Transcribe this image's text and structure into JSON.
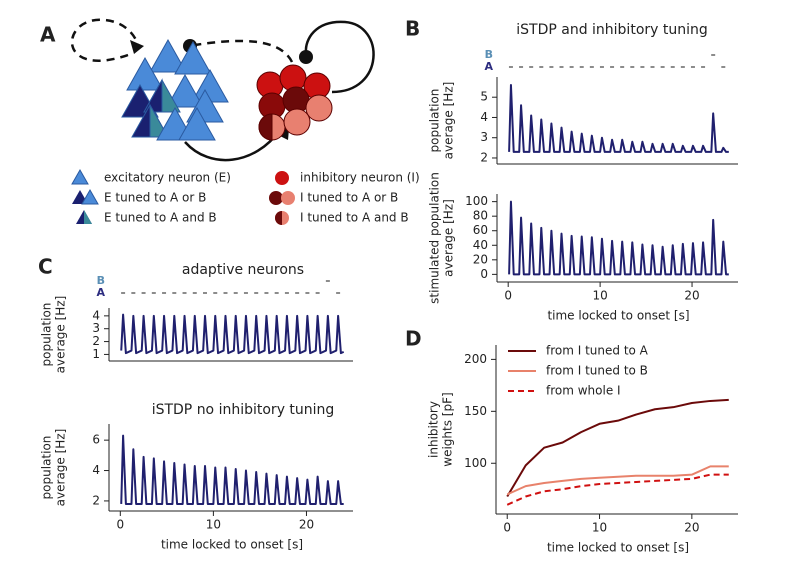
{
  "diagram": {
    "label": "A",
    "legend": [
      "excitatory neuron (E)",
      "E tuned to A or B",
      "E tuned to A and B",
      "inhibitory neuron (I)",
      "I tuned to A or B",
      "I tuned to A and B"
    ]
  },
  "chart_data": [
    {
      "panel": "B",
      "type": "line",
      "title": "iSTDP and inhibitory tuning",
      "ylabel": [
        "population",
        "average [Hz]"
      ],
      "x": [
        0.1,
        0.3,
        0.6,
        1.2,
        1.4,
        1.7,
        2.3,
        2.5,
        2.8,
        3.4,
        3.6,
        3.9,
        4.5,
        4.7,
        5.0,
        5.6,
        5.8,
        6.1,
        6.7,
        6.9,
        7.2,
        7.8,
        8.0,
        8.3,
        8.9,
        9.1,
        9.4,
        10.0,
        10.2,
        10.5,
        11.1,
        11.3,
        11.6,
        12.2,
        12.4,
        12.7,
        13.3,
        13.5,
        13.8,
        14.4,
        14.6,
        14.9,
        15.5,
        15.7,
        16.0,
        16.6,
        16.8,
        17.1,
        17.7,
        17.9,
        18.2,
        18.8,
        19.0,
        19.3,
        19.9,
        20.1,
        20.4,
        21.0,
        21.2,
        21.5,
        22.1,
        22.3,
        22.6,
        23.2,
        23.4,
        23.7,
        24.0
      ],
      "values": [
        2.3,
        5.6,
        2.3,
        2.3,
        4.6,
        2.3,
        2.3,
        4.1,
        2.3,
        2.3,
        3.9,
        2.3,
        2.3,
        3.7,
        2.3,
        2.3,
        3.5,
        2.3,
        2.3,
        3.3,
        2.3,
        2.3,
        3.2,
        2.3,
        2.3,
        3.1,
        2.3,
        2.3,
        3.0,
        2.3,
        2.3,
        2.9,
        2.3,
        2.3,
        2.9,
        2.3,
        2.3,
        2.8,
        2.3,
        2.3,
        2.8,
        2.3,
        2.3,
        2.7,
        2.3,
        2.3,
        2.7,
        2.3,
        2.3,
        2.7,
        2.3,
        2.3,
        2.6,
        2.3,
        2.3,
        2.6,
        2.3,
        2.3,
        2.6,
        2.3,
        2.3,
        4.2,
        2.3,
        2.3,
        2.5,
        2.3,
        2.3
      ],
      "color": "#20206e",
      "xlim": [
        -1,
        25
      ],
      "ylim": [
        1.9,
        5.8
      ],
      "yticks": [
        2,
        3,
        4,
        5
      ],
      "stimuli": [
        {
          "name": "B",
          "color": "#5a8fb5",
          "times": [
            22.3
          ]
        },
        {
          "name": "A",
          "color": "#2d2d80",
          "times": [
            0.3,
            1.4,
            2.5,
            3.6,
            4.7,
            5.8,
            6.9,
            8.0,
            9.1,
            10.2,
            11.3,
            12.4,
            13.5,
            14.6,
            15.7,
            16.8,
            17.9,
            19.0,
            20.1,
            21.2,
            23.4
          ]
        }
      ]
    },
    {
      "type": "line",
      "ylabel": [
        "stimulated population",
        "average [Hz]"
      ],
      "xlabel": "time locked to onset [s]",
      "x": [
        0.1,
        0.3,
        0.6,
        1.2,
        1.4,
        1.7,
        2.3,
        2.5,
        2.8,
        3.4,
        3.6,
        3.9,
        4.5,
        4.7,
        5.0,
        5.6,
        5.8,
        6.1,
        6.7,
        6.9,
        7.2,
        7.8,
        8.0,
        8.3,
        8.9,
        9.1,
        9.4,
        10.0,
        10.2,
        10.5,
        11.1,
        11.3,
        11.6,
        12.2,
        12.4,
        12.7,
        13.3,
        13.5,
        13.8,
        14.4,
        14.6,
        14.9,
        15.5,
        15.7,
        16.0,
        16.6,
        16.8,
        17.1,
        17.7,
        17.9,
        18.2,
        18.8,
        19.0,
        19.3,
        19.9,
        20.1,
        20.4,
        21.0,
        21.2,
        21.5,
        22.1,
        22.3,
        22.6,
        23.2,
        23.4,
        23.7,
        24.0
      ],
      "values": [
        0,
        100,
        0,
        0,
        78,
        0,
        0,
        70,
        0,
        0,
        64,
        0,
        0,
        60,
        0,
        0,
        56,
        0,
        0,
        53,
        0,
        0,
        52,
        0,
        0,
        51,
        0,
        0,
        49,
        0,
        0,
        46,
        0,
        0,
        45,
        0,
        0,
        44,
        0,
        0,
        41,
        0,
        0,
        40,
        0,
        0,
        38,
        0,
        0,
        40,
        0,
        0,
        42,
        0,
        0,
        43,
        0,
        0,
        44,
        0,
        0,
        75,
        0,
        0,
        45,
        0,
        0
      ],
      "color": "#20206e",
      "xlim": [
        -1,
        25
      ],
      "ylim": [
        -5,
        105
      ],
      "yticks": [
        0,
        20,
        40,
        60,
        80,
        100
      ],
      "xticks": [
        0,
        10,
        20
      ]
    },
    {
      "panel": "C",
      "type": "line",
      "title": "adaptive neurons",
      "ylabel": [
        "population",
        "average [Hz]"
      ],
      "x": [
        0.1,
        0.3,
        0.6,
        1.2,
        1.4,
        1.7,
        2.3,
        2.5,
        2.8,
        3.4,
        3.6,
        3.9,
        4.5,
        4.7,
        5.0,
        5.6,
        5.8,
        6.1,
        6.7,
        6.9,
        7.2,
        7.8,
        8.0,
        8.3,
        8.9,
        9.1,
        9.4,
        10.0,
        10.2,
        10.5,
        11.1,
        11.3,
        11.6,
        12.2,
        12.4,
        12.7,
        13.3,
        13.5,
        13.8,
        14.4,
        14.6,
        14.9,
        15.5,
        15.7,
        16.0,
        16.6,
        16.8,
        17.1,
        17.7,
        17.9,
        18.2,
        18.8,
        19.0,
        19.3,
        19.9,
        20.1,
        20.4,
        21.0,
        21.2,
        21.5,
        22.1,
        22.3,
        22.6,
        23.2,
        23.4,
        23.7,
        24.0
      ],
      "values": [
        1.3,
        4.1,
        1.1,
        1.3,
        4.0,
        1.1,
        1.3,
        4.0,
        1.1,
        1.3,
        4.0,
        1.1,
        1.3,
        4.0,
        1.1,
        1.3,
        4.0,
        1.1,
        1.3,
        4.0,
        1.1,
        1.3,
        4.0,
        1.1,
        1.3,
        4.0,
        1.1,
        1.3,
        4.0,
        1.1,
        1.3,
        4.0,
        1.1,
        1.3,
        4.0,
        1.1,
        1.3,
        4.0,
        1.1,
        1.3,
        4.0,
        1.1,
        1.3,
        4.0,
        1.1,
        1.3,
        4.0,
        1.1,
        1.3,
        4.0,
        1.1,
        1.3,
        4.0,
        1.1,
        1.3,
        4.0,
        1.1,
        1.3,
        4.0,
        1.1,
        1.3,
        4.0,
        1.1,
        1.3,
        4.0,
        1.1,
        1.2
      ],
      "color": "#20206e",
      "xlim": [
        -1,
        25
      ],
      "ylim": [
        0.8,
        4.3
      ],
      "yticks": [
        1,
        2,
        3,
        4
      ],
      "stimuli": [
        {
          "name": "B",
          "color": "#5a8fb5",
          "times": [
            22.3
          ]
        },
        {
          "name": "A",
          "color": "#2d2d80",
          "times": [
            0.3,
            1.4,
            2.5,
            3.6,
            4.7,
            5.8,
            6.9,
            8.0,
            9.1,
            10.2,
            11.3,
            12.4,
            13.5,
            14.6,
            15.7,
            16.8,
            17.9,
            19.0,
            20.1,
            21.2,
            23.4
          ]
        }
      ]
    },
    {
      "type": "line",
      "title": "iSTDP no inhibitory tuning",
      "ylabel": [
        "population",
        "average [Hz]"
      ],
      "xlabel": "time locked to onset [s]",
      "x": [
        0.1,
        0.3,
        0.6,
        1.2,
        1.4,
        1.7,
        2.3,
        2.5,
        2.8,
        3.4,
        3.6,
        3.9,
        4.5,
        4.7,
        5.0,
        5.6,
        5.8,
        6.1,
        6.7,
        6.9,
        7.2,
        7.8,
        8.0,
        8.3,
        8.9,
        9.1,
        9.4,
        10.0,
        10.2,
        10.5,
        11.1,
        11.3,
        11.6,
        12.2,
        12.4,
        12.7,
        13.3,
        13.5,
        13.8,
        14.4,
        14.6,
        14.9,
        15.5,
        15.7,
        16.0,
        16.6,
        16.8,
        17.1,
        17.7,
        17.9,
        18.2,
        18.8,
        19.0,
        19.3,
        19.9,
        20.1,
        20.4,
        21.0,
        21.2,
        21.5,
        22.1,
        22.3,
        22.6,
        23.2,
        23.4,
        23.7,
        24.0
      ],
      "values": [
        1.8,
        6.3,
        1.8,
        1.8,
        5.4,
        1.8,
        1.8,
        4.9,
        1.8,
        1.8,
        4.8,
        1.8,
        1.8,
        4.6,
        1.8,
        1.8,
        4.5,
        1.8,
        1.8,
        4.4,
        1.8,
        1.8,
        4.3,
        1.8,
        1.8,
        4.3,
        1.8,
        1.8,
        4.2,
        1.8,
        1.8,
        4.2,
        1.8,
        1.8,
        4.1,
        1.8,
        1.8,
        4.0,
        1.8,
        1.8,
        3.9,
        1.8,
        1.8,
        3.8,
        1.8,
        1.8,
        3.7,
        1.8,
        1.8,
        3.6,
        1.8,
        1.8,
        3.5,
        1.8,
        1.8,
        3.4,
        1.8,
        1.8,
        3.6,
        1.8,
        1.8,
        3.3,
        1.8,
        1.8,
        3.3,
        1.8,
        1.8
      ],
      "color": "#20206e",
      "xlim": [
        -1,
        25
      ],
      "ylim": [
        1.6,
        6.8
      ],
      "yticks": [
        2,
        4,
        6
      ],
      "xticks": [
        0,
        10,
        20
      ]
    },
    {
      "panel": "D",
      "type": "line",
      "ylabel": [
        "inhibitory",
        "weights [pF]"
      ],
      "xlabel": "time locked to onset [s]",
      "x": [
        0,
        2,
        4,
        6,
        8,
        10,
        12,
        14,
        16,
        18,
        20,
        22,
        24
      ],
      "series": [
        {
          "name": "from I tuned to A",
          "color": "#6b0a0a",
          "dash": false,
          "values": [
            68,
            98,
            115,
            120,
            130,
            138,
            141,
            147,
            152,
            154,
            158,
            160,
            161
          ]
        },
        {
          "name": "from I tuned to B",
          "color": "#e8826b",
          "dash": false,
          "values": [
            70,
            78,
            81,
            83,
            85,
            86,
            87,
            88,
            88,
            88,
            89,
            97,
            97
          ]
        },
        {
          "name": "from whole I",
          "color": "#d01010",
          "dash": true,
          "values": [
            60,
            68,
            73,
            75,
            78,
            80,
            81,
            82,
            83,
            84,
            85,
            89,
            89
          ]
        }
      ],
      "xlim": [
        -1,
        25
      ],
      "ylim": [
        55,
        210
      ],
      "yticks": [
        100,
        150,
        200
      ],
      "xticks": [
        0,
        10,
        20
      ],
      "legend": "upper left"
    }
  ]
}
